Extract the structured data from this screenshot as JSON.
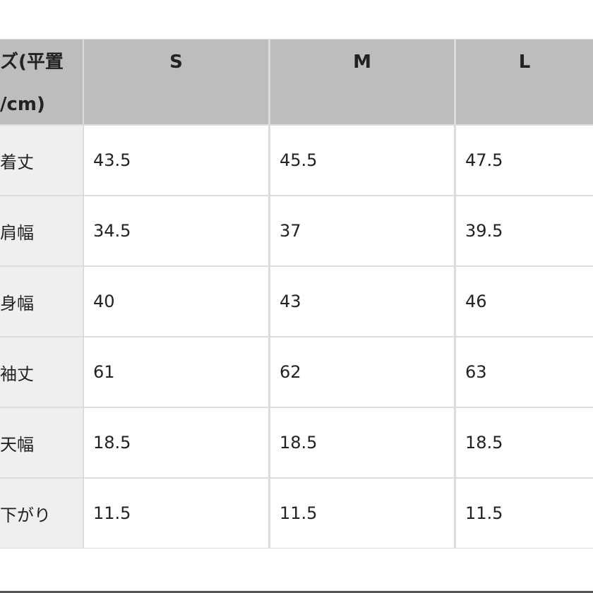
{
  "table": {
    "corner_lines": [
      "ズ(平置",
      "/cm)"
    ],
    "columns": [
      "S",
      "M",
      "L"
    ],
    "rows": [
      {
        "label": "着丈",
        "values": [
          "43.5",
          "45.5",
          "47.5"
        ]
      },
      {
        "label": "肩幅",
        "values": [
          "34.5",
          "37",
          "39.5"
        ]
      },
      {
        "label": "身幅",
        "values": [
          "40",
          "43",
          "46"
        ]
      },
      {
        "label": "袖丈",
        "values": [
          "61",
          "62",
          "63"
        ]
      },
      {
        "label": "天幅",
        "values": [
          "18.5",
          "18.5",
          "18.5"
        ]
      },
      {
        "label": "下がり",
        "values": [
          "11.5",
          "11.5",
          "11.5"
        ]
      }
    ]
  },
  "colors": {
    "header_bg": "#bdbdbd",
    "label_bg": "#efefef",
    "border": "#dcdcdc"
  }
}
